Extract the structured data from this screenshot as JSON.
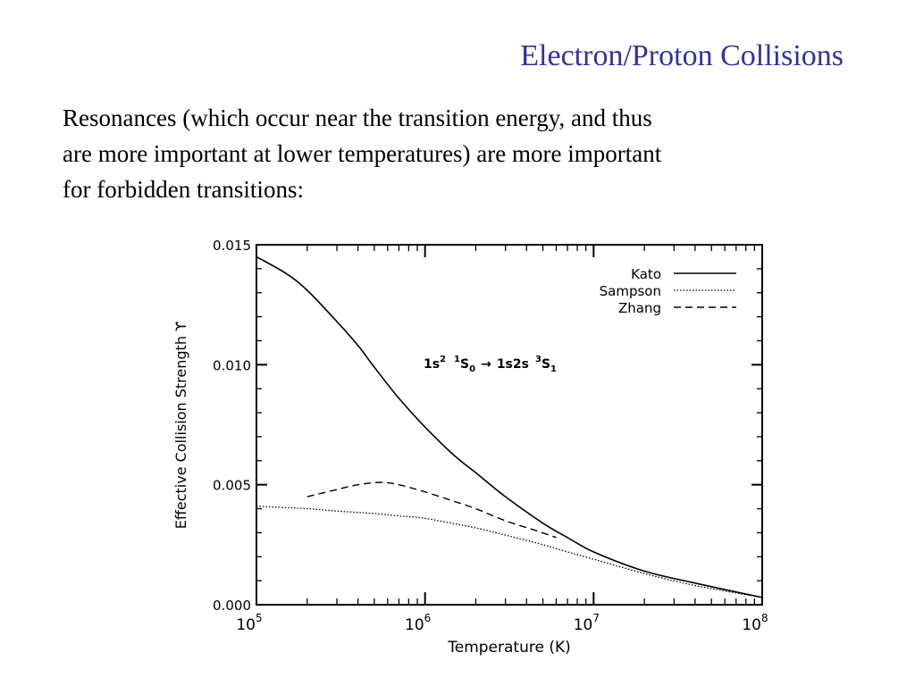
{
  "slide": {
    "title": "Electron/Proton Collisions",
    "body_lines": [
      "Resonances (which occur near the transition energy, and thus",
      "are more important at lower temperatures) are more important",
      "for forbidden transitions:"
    ]
  },
  "chart_data": {
    "type": "line",
    "xlabel": "Temperature (K)",
    "ylabel": "Effective Collision Strength ϒ",
    "xscale": "log",
    "xlim": [
      100000,
      100000000
    ],
    "ylim": [
      0,
      0.015
    ],
    "x_ticks": [
      {
        "base": "10",
        "exp": "5"
      },
      {
        "base": "10",
        "exp": "6"
      },
      {
        "base": "10",
        "exp": "7"
      },
      {
        "base": "10",
        "exp": "8"
      }
    ],
    "y_ticks": [
      "0.000",
      "0.005",
      "0.010",
      "0.015"
    ],
    "y_tick_values": [
      0,
      0.005,
      0.01,
      0.015
    ],
    "grid": false,
    "legend_position": "top-right",
    "annotation": {
      "a": "1s",
      "a_sup": "2",
      "b_sup": "1",
      "b": "S",
      "b_sub": "0",
      "arrow": "→",
      "c": "1s2s",
      "c_sup": "3",
      "d": "S",
      "d_sub": "1"
    },
    "series": [
      {
        "name": "Kato",
        "style": "solid",
        "x": [
          100000,
          150000,
          200000,
          300000,
          400000,
          500000,
          700000,
          1000000,
          1500000,
          2000000,
          3000000,
          5000000,
          7000000,
          10000000,
          20000000,
          40000000,
          100000000
        ],
        "y": [
          0.0145,
          0.0138,
          0.0131,
          0.0118,
          0.0108,
          0.0099,
          0.0086,
          0.0074,
          0.0062,
          0.0055,
          0.0045,
          0.0034,
          0.0028,
          0.0022,
          0.0014,
          0.0009,
          0.0003
        ]
      },
      {
        "name": "Sampson",
        "style": "dotted",
        "x": [
          100000,
          200000,
          300000,
          500000,
          700000,
          1000000,
          2000000,
          3000000,
          5000000,
          7000000,
          10000000,
          20000000,
          40000000,
          100000000
        ],
        "y": [
          0.0041,
          0.004,
          0.0039,
          0.0038,
          0.0037,
          0.0036,
          0.0032,
          0.0029,
          0.0025,
          0.0022,
          0.0019,
          0.0013,
          0.0008,
          0.0003
        ]
      },
      {
        "name": "Zhang",
        "style": "dashed",
        "x": [
          200000,
          300000,
          400000,
          550000,
          700000,
          1000000,
          1500000,
          2000000,
          3000000,
          4500000,
          6000000
        ],
        "y": [
          0.0045,
          0.0048,
          0.005,
          0.0051,
          0.005,
          0.0047,
          0.0043,
          0.004,
          0.0035,
          0.0031,
          0.0028
        ]
      }
    ]
  }
}
